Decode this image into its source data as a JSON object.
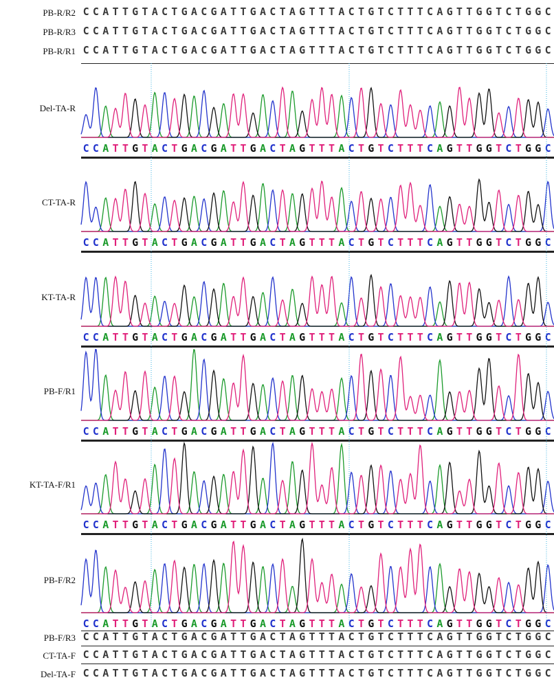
{
  "top_rows": [
    {
      "label": "PB-R/R2",
      "sequence": "CCATTGTACTGACGATTGACTAGTTTACTGTCTTTCAGTTGGTCTGGC"
    },
    {
      "label": "PB-R/R3",
      "sequence": "CCATTGTACTGACGATTGACTAGTTTACTGTCTTTCAGTTGGTCTGGC"
    },
    {
      "label": "PB-R/R1",
      "sequence": "CCATTGTACTGACGATTGACTAGTTTACTGTCTTTCAGTTGGTCTGGC"
    }
  ],
  "traces": [
    {
      "label": "Del-TA-R",
      "sequence": "CCATTGTACTGACGATTGACTAGTTTACTGTCTTTCAGTTGGTCTGGC"
    },
    {
      "label": "CT-TA-R",
      "sequence": "CCATTGTACTGACGATTGACTAGTTTACTGTCTTTCAGTTGGTCTGGC"
    },
    {
      "label": "KT-TA-R",
      "sequence": "CCATTGTACTGACGATTGACTAGTTTACTGTCTTTCAGTTGGTCTGGC"
    },
    {
      "label": "PB-F/R1",
      "sequence": "CCATTGTACTGACGATTGACTAGTTTACTGTCTTTCAGTTGGTCTGGC"
    },
    {
      "label": "KT-TA-F/R1",
      "sequence": "CCATTGTACTGACGATTGACTAGTTTACTGTCTTTCAGTTGGTCTGGC"
    },
    {
      "label": "PB-F/R2",
      "sequence": "CCATTGTACTGACGATTGACTAGTTTACTGTCTTTCAGTTGGTCTGGC"
    }
  ],
  "bottom_rows": [
    {
      "label": "PB-F/R3",
      "sequence": "CCATTGTACTGACGATTGACTAGTTTACTGTCTTTCAGTTGGTCTGGC"
    },
    {
      "label": "CT-TA-F",
      "sequence": "CCATTGTACTGACGATTGACTAGTTTACTGTCTTTCAGTTGGTCTGGC"
    },
    {
      "label": "Del-TA-F",
      "sequence": "CCATTGTACTGACGATTGACTAGTTTACTGTCTTTCAGTTGGTCTGGC"
    }
  ]
}
